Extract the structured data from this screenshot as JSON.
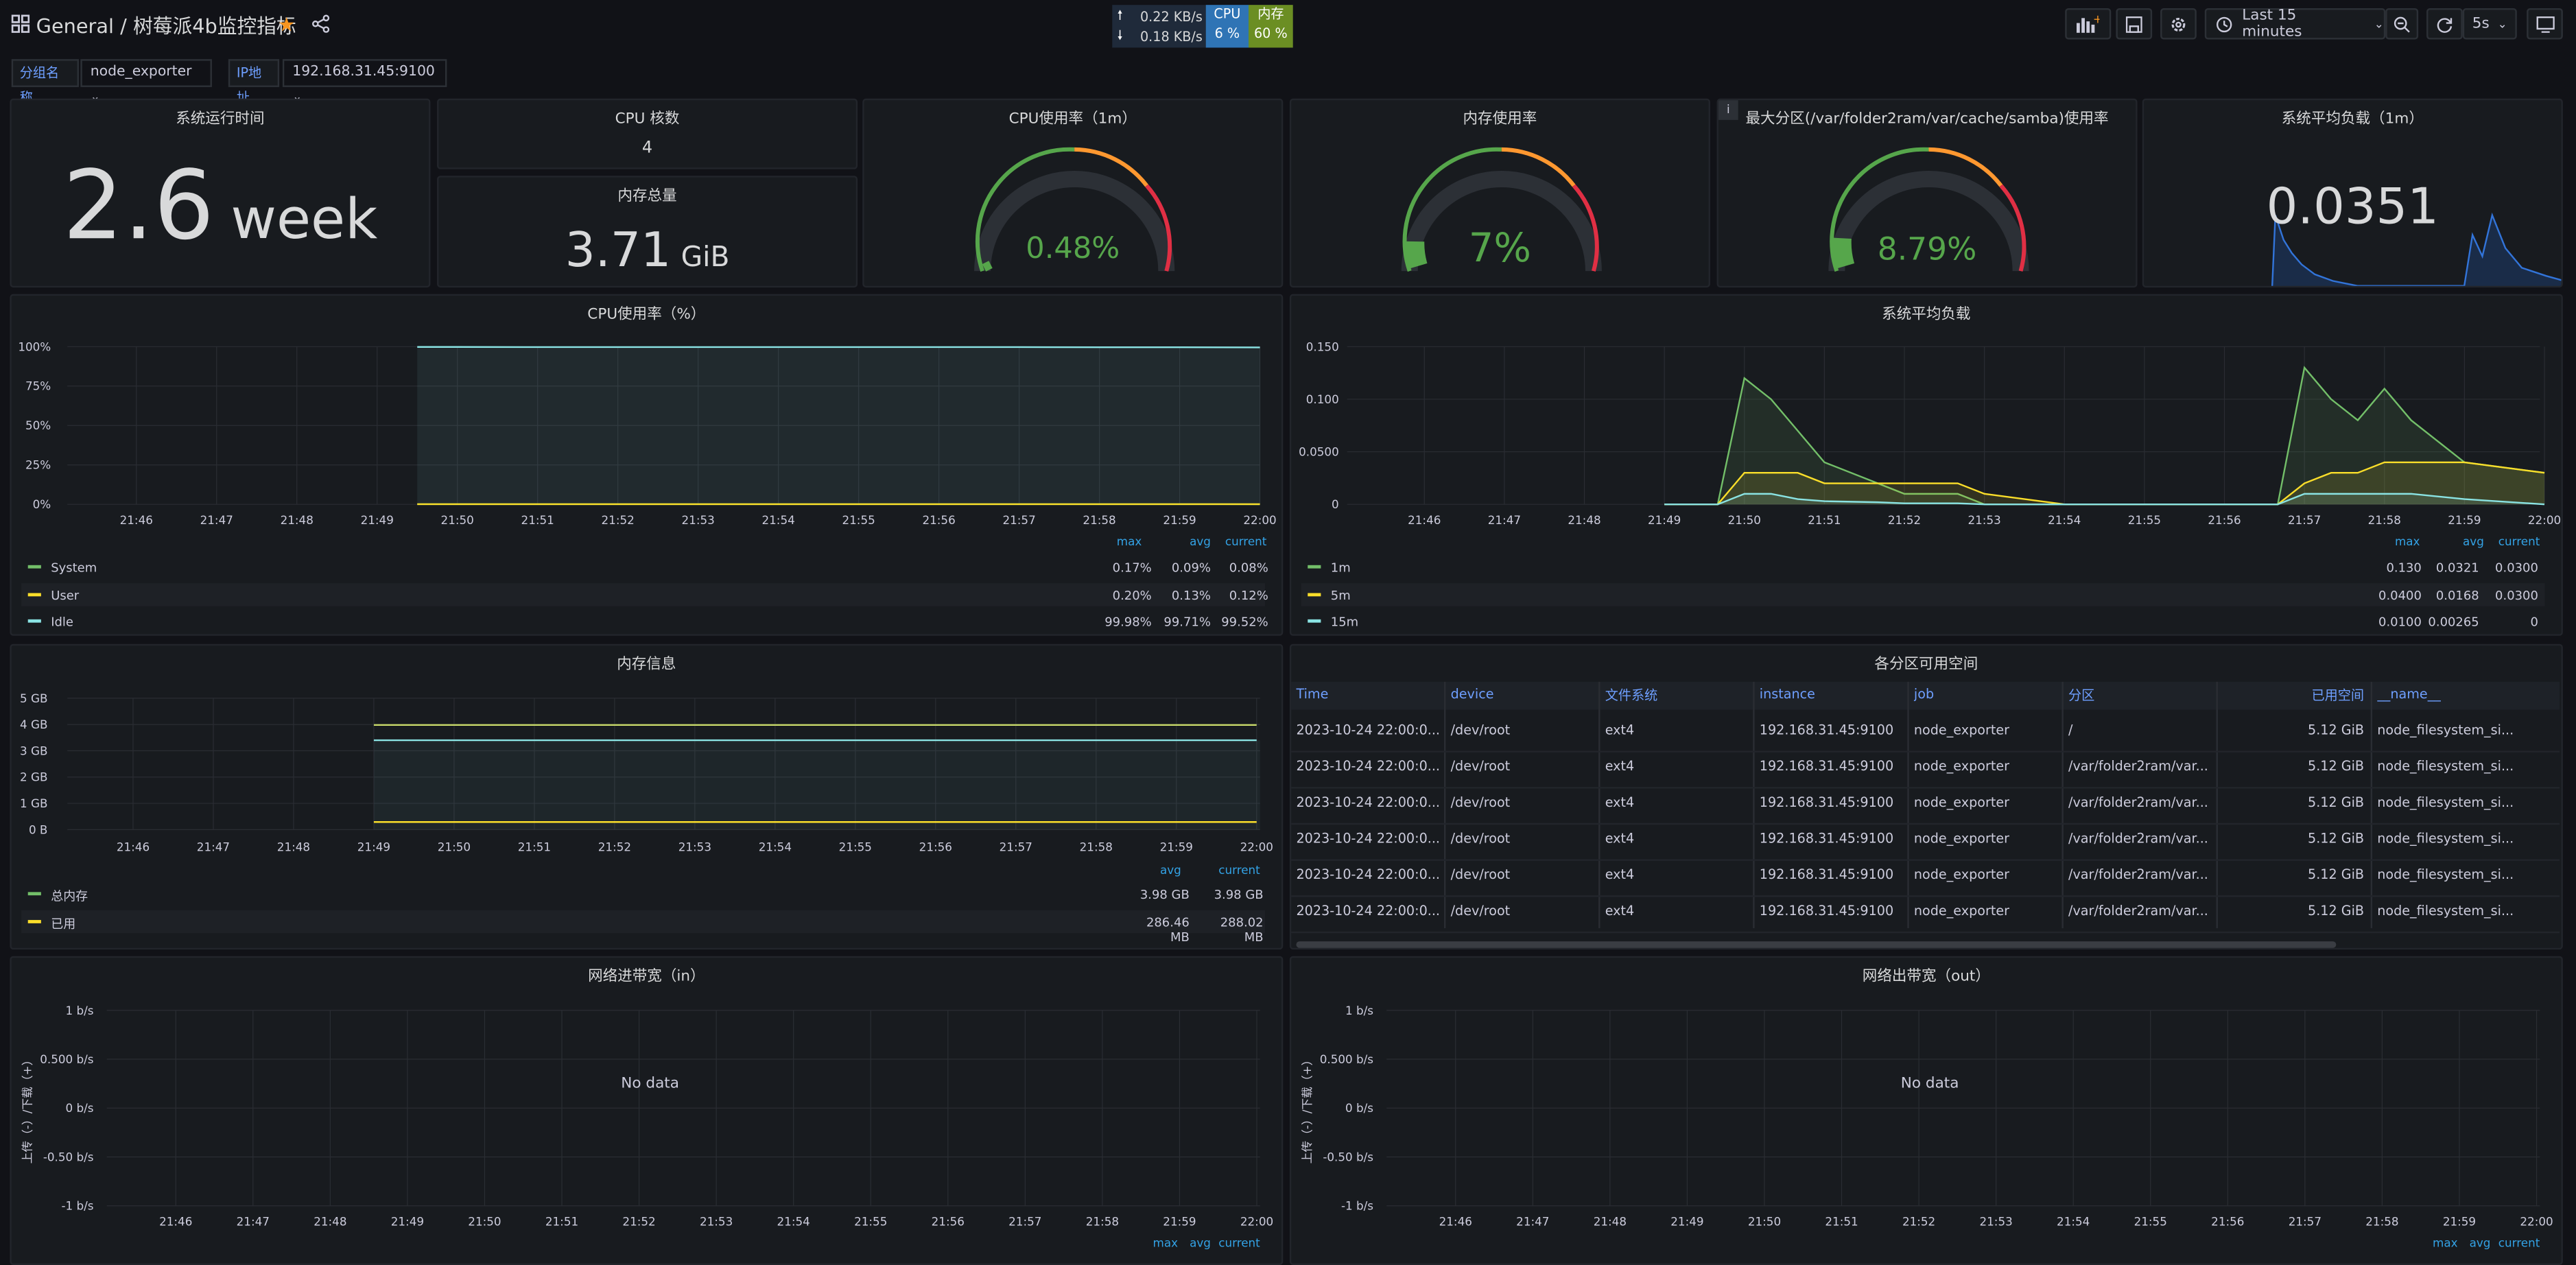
{
  "topbar": {
    "breadcrumb_root": "General",
    "breadcrumb_sep": "/",
    "breadcrumb_title": "树莓派4b监控指标",
    "time_range": "Last 15 minutes",
    "refresh": "5s"
  },
  "netwidget": {
    "up": "0.22 KB/s",
    "down": "0.18 KB/s",
    "cpu_label": "CPU",
    "cpu_val": "6 %",
    "mem_label": "内存",
    "mem_val": "60 %"
  },
  "vars": {
    "group_label": "分组名称",
    "group_value": "node_exporter",
    "ip_label": "IP地址",
    "ip_value": "192.168.31.45:9100"
  },
  "stats": {
    "uptime_title": "系统运行时间",
    "uptime_num": "2.6",
    "uptime_unit": "week",
    "cpu_cores_title": "CPU 核数",
    "cpu_cores_val": "4",
    "mem_total_title": "内存总量",
    "mem_total_num": "3.71",
    "mem_total_unit": "GiB",
    "cpu_usage_title": "CPU使用率（1m）",
    "cpu_usage_val": "0.48%",
    "mem_usage_title": "内存使用率",
    "mem_usage_val": "7%",
    "disk_title": "最大分区(/var/folder2ram/var/cache/samba)使用率",
    "disk_val": "8.79%",
    "load_title": "系统平均负载（1m）",
    "load_val": "0.0351"
  },
  "cpu_panel": {
    "title": "CPU使用率（%）",
    "yticks": [
      "100%",
      "75%",
      "50%",
      "25%",
      "0%"
    ],
    "xticks": [
      "21:46",
      "21:47",
      "21:48",
      "21:49",
      "21:50",
      "21:51",
      "21:52",
      "21:53",
      "21:54",
      "21:55",
      "21:56",
      "21:57",
      "21:58",
      "21:59",
      "22:00"
    ],
    "legend_head": [
      "max",
      "avg",
      "current"
    ],
    "legend": [
      {
        "name": "System",
        "color": "#73bf69",
        "max": "0.17%",
        "avg": "0.09%",
        "current": "0.08%"
      },
      {
        "name": "User",
        "color": "#fade2a",
        "max": "0.20%",
        "avg": "0.13%",
        "current": "0.12%"
      },
      {
        "name": "Idle",
        "color": "#8ae3e3",
        "max": "99.98%",
        "avg": "99.71%",
        "current": "99.52%"
      }
    ]
  },
  "load_panel": {
    "title": "系统平均负载",
    "yticks": [
      "0.150",
      "0.100",
      "0.0500",
      "0"
    ],
    "xticks": [
      "21:46",
      "21:47",
      "21:48",
      "21:49",
      "21:50",
      "21:51",
      "21:52",
      "21:53",
      "21:54",
      "21:55",
      "21:56",
      "21:57",
      "21:58",
      "21:59",
      "22:00"
    ],
    "legend_head": [
      "max",
      "avg",
      "current"
    ],
    "legend": [
      {
        "name": "1m",
        "color": "#73bf69",
        "max": "0.130",
        "avg": "0.0321",
        "current": "0.0300"
      },
      {
        "name": "5m",
        "color": "#fade2a",
        "max": "0.0400",
        "avg": "0.0168",
        "current": "0.0300"
      },
      {
        "name": "15m",
        "color": "#8ae3e3",
        "max": "0.0100",
        "avg": "0.00265",
        "current": "0"
      }
    ]
  },
  "mem_panel": {
    "title": "内存信息",
    "yticks": [
      "5 GB",
      "4 GB",
      "3 GB",
      "2 GB",
      "1 GB",
      "0 B"
    ],
    "xticks": [
      "21:46",
      "21:47",
      "21:48",
      "21:49",
      "21:50",
      "21:51",
      "21:52",
      "21:53",
      "21:54",
      "21:55",
      "21:56",
      "21:57",
      "21:58",
      "21:59",
      "22:00"
    ],
    "legend_head": [
      "avg",
      "current"
    ],
    "legend": [
      {
        "name": "总内存",
        "color": "#73bf69",
        "avg": "3.98 GB",
        "current": "3.98 GB"
      },
      {
        "name": "已用",
        "color": "#fade2a",
        "avg": "286.46 MB",
        "current": "288.02 MB"
      }
    ]
  },
  "disk_table": {
    "title": "各分区可用空间",
    "headers": [
      "Time",
      "device",
      "文件系统",
      "instance",
      "job",
      "分区",
      "已用空间",
      "__name__"
    ],
    "rows": [
      [
        "2023-10-24 22:00:0...",
        "/dev/root",
        "ext4",
        "192.168.31.45:9100",
        "node_exporter",
        "/",
        "5.12 GiB",
        "node_filesystem_si..."
      ],
      [
        "2023-10-24 22:00:0...",
        "/dev/root",
        "ext4",
        "192.168.31.45:9100",
        "node_exporter",
        "/var/folder2ram/var...",
        "5.12 GiB",
        "node_filesystem_si..."
      ],
      [
        "2023-10-24 22:00:0...",
        "/dev/root",
        "ext4",
        "192.168.31.45:9100",
        "node_exporter",
        "/var/folder2ram/var...",
        "5.12 GiB",
        "node_filesystem_si..."
      ],
      [
        "2023-10-24 22:00:0...",
        "/dev/root",
        "ext4",
        "192.168.31.45:9100",
        "node_exporter",
        "/var/folder2ram/var...",
        "5.12 GiB",
        "node_filesystem_si..."
      ],
      [
        "2023-10-24 22:00:0...",
        "/dev/root",
        "ext4",
        "192.168.31.45:9100",
        "node_exporter",
        "/var/folder2ram/var...",
        "5.12 GiB",
        "node_filesystem_si..."
      ],
      [
        "2023-10-24 22:00:0...",
        "/dev/root",
        "ext4",
        "192.168.31.45:9100",
        "node_exporter",
        "/var/folder2ram/var...",
        "5.12 GiB",
        "node_filesystem_si..."
      ]
    ]
  },
  "net_in": {
    "title": "网络进带宽（in）",
    "no_data": "No data",
    "ylabel": "上传（-）/下载（+）",
    "yticks": [
      "1 b/s",
      "0.500 b/s",
      "0 b/s",
      "-0.50 b/s",
      "-1 b/s"
    ],
    "xticks": [
      "21:46",
      "21:47",
      "21:48",
      "21:49",
      "21:50",
      "21:51",
      "21:52",
      "21:53",
      "21:54",
      "21:55",
      "21:56",
      "21:57",
      "21:58",
      "21:59",
      "22:00"
    ],
    "legend_head": [
      "max",
      "avg",
      "current"
    ]
  },
  "net_out": {
    "title": "网络出带宽（out）",
    "no_data": "No data",
    "ylabel": "上传（-）/下载（+）",
    "yticks": [
      "1 b/s",
      "0.500 b/s",
      "0 b/s",
      "-0.50 b/s",
      "-1 b/s"
    ],
    "xticks": [
      "21:46",
      "21:47",
      "21:48",
      "21:49",
      "21:50",
      "21:51",
      "21:52",
      "21:53",
      "21:54",
      "21:55",
      "21:56",
      "21:57",
      "21:58",
      "21:59",
      "22:00"
    ],
    "legend_head": [
      "max",
      "avg",
      "current"
    ]
  },
  "chart_data": [
    {
      "type": "line",
      "title": "CPU使用率（%）",
      "x": [
        "21:49:30",
        "21:50",
        "21:51",
        "21:52",
        "21:53",
        "21:54",
        "21:55",
        "21:56",
        "21:57",
        "21:58",
        "21:59",
        "22:00"
      ],
      "ylim": [
        0,
        100
      ],
      "series": [
        {
          "name": "System",
          "values": [
            0.1,
            0.1,
            0.1,
            0.1,
            0.1,
            0.1,
            0.1,
            0.1,
            0.1,
            0.1,
            0.1,
            0.08
          ]
        },
        {
          "name": "User",
          "values": [
            0.1,
            0.1,
            0.1,
            0.1,
            0.1,
            0.1,
            0.1,
            0.1,
            0.1,
            0.1,
            0.1,
            0.12
          ]
        },
        {
          "name": "Idle",
          "values": [
            99.8,
            99.8,
            99.7,
            99.7,
            99.7,
            99.7,
            99.7,
            99.7,
            99.7,
            99.6,
            99.6,
            99.5
          ]
        }
      ]
    },
    {
      "type": "line",
      "title": "系统平均负载",
      "x": [
        "21:49",
        "21:49:40",
        "21:50",
        "21:50:20",
        "21:50:40",
        "21:51",
        "21:51:40",
        "21:52",
        "21:52:40",
        "21:53",
        "21:54",
        "21:55",
        "21:56",
        "21:56:40",
        "21:57",
        "21:57:20",
        "21:57:40",
        "21:58",
        "21:58:20",
        "21:59",
        "22:00"
      ],
      "ylim": [
        0,
        0.15
      ],
      "series": [
        {
          "name": "1m",
          "values": [
            0,
            0,
            0.12,
            0.1,
            0.07,
            0.04,
            0.02,
            0.01,
            0.01,
            0,
            0,
            0,
            0,
            0,
            0.13,
            0.1,
            0.08,
            0.11,
            0.08,
            0.04,
            0.03
          ]
        },
        {
          "name": "5m",
          "values": [
            0,
            0,
            0.03,
            0.03,
            0.03,
            0.02,
            0.02,
            0.02,
            0.02,
            0.01,
            0,
            0,
            0,
            0,
            0.02,
            0.03,
            0.03,
            0.04,
            0.04,
            0.04,
            0.03
          ]
        },
        {
          "name": "15m",
          "values": [
            0,
            0,
            0.01,
            0.01,
            0.005,
            0.003,
            0.002,
            0.001,
            0.001,
            0,
            0,
            0,
            0,
            0,
            0.01,
            0.01,
            0.01,
            0.01,
            0.01,
            0.005,
            0
          ]
        }
      ]
    },
    {
      "type": "line",
      "title": "内存信息",
      "x": [
        "21:49",
        "21:50",
        "21:51",
        "21:52",
        "21:53",
        "21:54",
        "21:55",
        "21:56",
        "21:57",
        "21:58",
        "21:59",
        "22:00"
      ],
      "ylim": [
        0,
        5
      ],
      "series": [
        {
          "name": "总内存",
          "values": [
            3.98,
            3.98,
            3.98,
            3.98,
            3.98,
            3.98,
            3.98,
            3.98,
            3.98,
            3.98,
            3.98,
            3.98
          ]
        },
        {
          "name": "已用",
          "values": [
            0.29,
            0.29,
            0.29,
            0.29,
            0.29,
            0.29,
            0.29,
            0.29,
            0.29,
            0.29,
            0.29,
            0.29
          ]
        },
        {
          "name": "",
          "values": [
            3.4,
            3.4,
            3.4,
            3.4,
            3.4,
            3.4,
            3.4,
            3.4,
            3.4,
            3.4,
            3.4,
            3.4
          ]
        }
      ]
    }
  ]
}
